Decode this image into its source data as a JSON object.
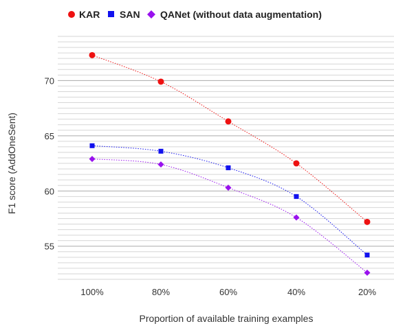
{
  "chart_data": {
    "type": "line",
    "categories": [
      "100%",
      "80%",
      "60%",
      "40%",
      "20%"
    ],
    "series": [
      {
        "name": "KAR",
        "values": [
          72.3,
          69.9,
          66.3,
          62.5,
          57.2
        ],
        "color": "#ee1111",
        "marker": "circle"
      },
      {
        "name": "SAN",
        "values": [
          64.1,
          63.6,
          62.1,
          59.5,
          54.2
        ],
        "color": "#1111ee",
        "marker": "square"
      },
      {
        "name": "QANet (without data augmentation)",
        "values": [
          62.9,
          62.4,
          60.3,
          57.6,
          52.6
        ],
        "color": "#9911ee",
        "marker": "diamond"
      }
    ],
    "xlabel": "Proportion of available training examples",
    "ylabel": "F1 score (AddOneSent)",
    "ylim": [
      52,
      74
    ],
    "yticks": [
      55,
      60,
      65,
      70
    ],
    "minor_grid_step": 0.5,
    "grid": true,
    "legend": "top",
    "line_style": "dotted"
  }
}
